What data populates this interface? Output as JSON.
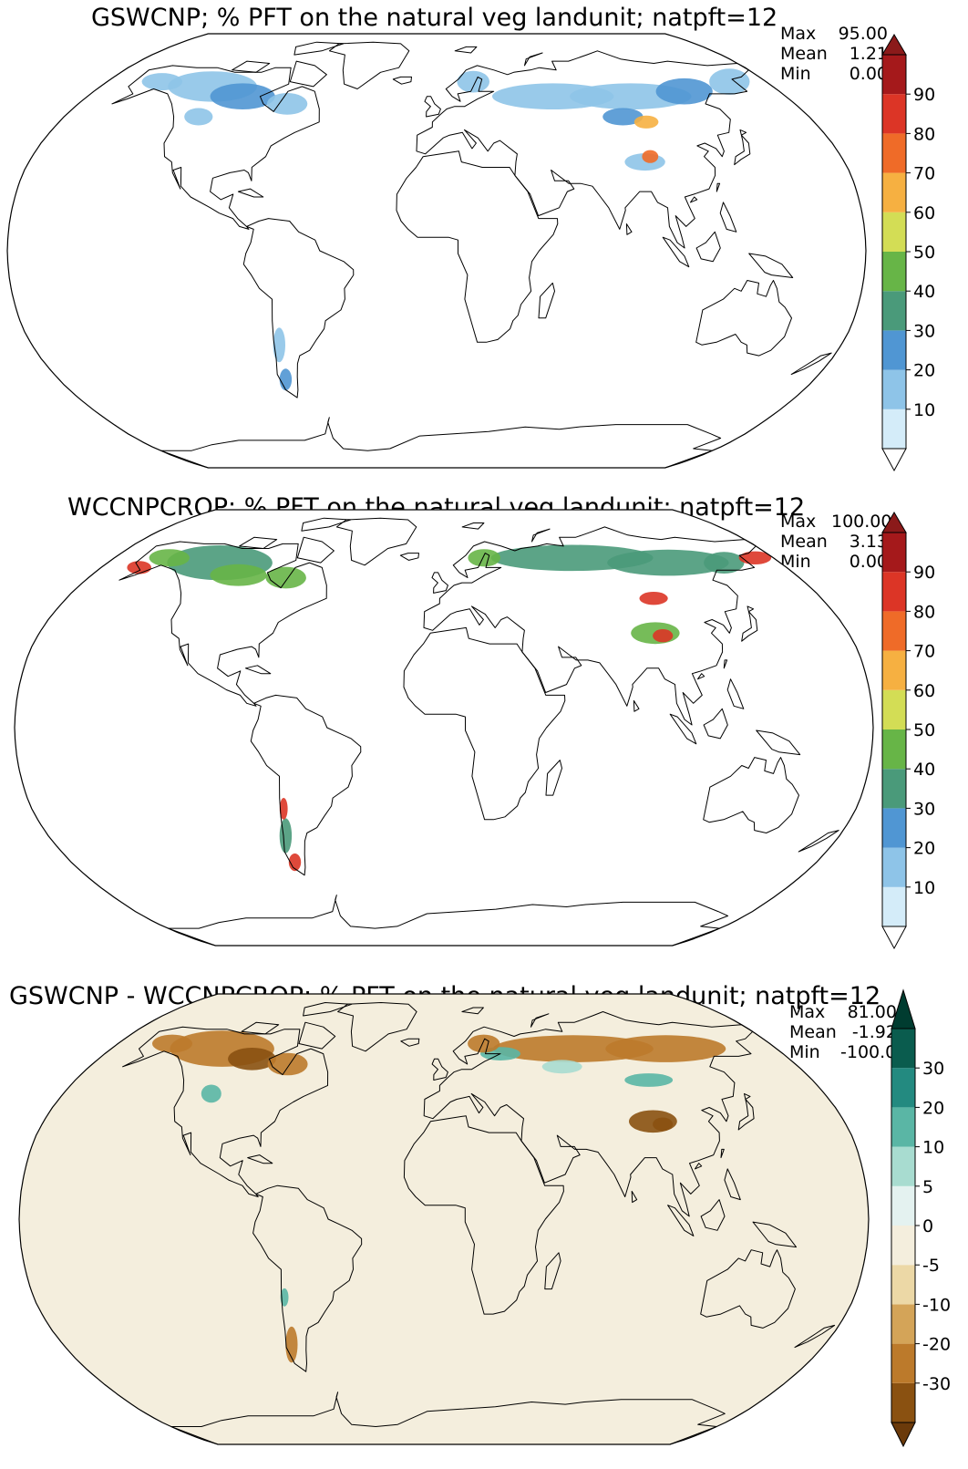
{
  "chart_data": [
    {
      "type": "heatmap",
      "title": "GSWCNP; % PFT on the natural veg landunit; natpft=12",
      "projection": "Robinson",
      "stats": {
        "max": "95.00",
        "mean": "1.21",
        "min": "0.00"
      },
      "stats_labels": {
        "max": "Max",
        "mean": "Mean",
        "min": "Min"
      },
      "colorbar": {
        "levels": [
          0,
          10,
          20,
          30,
          40,
          50,
          60,
          70,
          80,
          90,
          100
        ],
        "tick_labels": [
          "10",
          "20",
          "30",
          "40",
          "50",
          "60",
          "70",
          "80",
          "90"
        ],
        "extend": "both",
        "colors": [
          "#d4ecf9",
          "#8ec4e8",
          "#5096d3",
          "#4a9a7a",
          "#67b547",
          "#d3dd55",
          "#f6b041",
          "#ef6b28",
          "#dc3526",
          "#a5191b"
        ],
        "under_color": "#ffffff",
        "over_color": "#8b1a1a"
      }
    },
    {
      "type": "heatmap",
      "title": "WCCNPCROP; % PFT on the natural veg landunit; natpft=12",
      "projection": "Robinson",
      "stats": {
        "max": "100.00",
        "mean": "3.13",
        "min": "0.00"
      },
      "stats_labels": {
        "max": "Max",
        "mean": "Mean",
        "min": "Min"
      },
      "colorbar": {
        "levels": [
          0,
          10,
          20,
          30,
          40,
          50,
          60,
          70,
          80,
          90,
          100
        ],
        "tick_labels": [
          "10",
          "20",
          "30",
          "40",
          "50",
          "60",
          "70",
          "80",
          "90"
        ],
        "extend": "both",
        "colors": [
          "#d4ecf9",
          "#8ec4e8",
          "#5096d3",
          "#4a9a7a",
          "#67b547",
          "#d3dd55",
          "#f6b041",
          "#ef6b28",
          "#dc3526",
          "#a5191b"
        ],
        "under_color": "#ffffff",
        "over_color": "#8b1a1a"
      }
    },
    {
      "type": "heatmap",
      "title": "GSWCNP - WCCNPCROP; % PFT on the natural veg landunit; natpft=12",
      "projection": "Robinson",
      "stats": {
        "max": "81.00",
        "mean": "-1.92",
        "min": "-100.00"
      },
      "stats_labels": {
        "max": "Max",
        "mean": "Mean",
        "min": "Min"
      },
      "colorbar": {
        "levels": [
          -40,
          -30,
          -20,
          -10,
          -5,
          0,
          5,
          10,
          20,
          30,
          40
        ],
        "tick_labels": [
          "-30",
          "-20",
          "-10",
          "-5",
          "0",
          "5",
          "10",
          "20",
          "30"
        ],
        "extend": "both",
        "colors": [
          "#8a5111",
          "#bc7a2b",
          "#d4a458",
          "#ecd8a6",
          "#f4eedd",
          "#e4f2f0",
          "#a8dcd0",
          "#5ab6a5",
          "#238a80",
          "#0a5c4e"
        ],
        "under_color": "#6b3a0a",
        "over_color": "#003c30"
      }
    }
  ]
}
